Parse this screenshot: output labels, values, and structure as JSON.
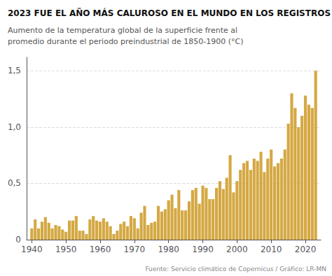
{
  "chart_data": {
    "type": "bar",
    "title": "2023 FUE EL AÑO MÁS CALUROSO EN EL MUNDO EN LOS REGISTROS",
    "subtitle": "Aumento de la temperatura global de la superficie frente al\npromedio durante el periodo preindustrial de 1850-1900 (°C)",
    "annotations": [
      "Fuente: Servicio climático de Copernicus / Gráfico: LR-MN"
    ],
    "x": [
      1940,
      1941,
      1942,
      1943,
      1944,
      1945,
      1946,
      1947,
      1948,
      1949,
      1950,
      1951,
      1952,
      1953,
      1954,
      1955,
      1956,
      1957,
      1958,
      1959,
      1960,
      1961,
      1962,
      1963,
      1964,
      1965,
      1966,
      1967,
      1968,
      1969,
      1970,
      1971,
      1972,
      1973,
      1974,
      1975,
      1976,
      1977,
      1978,
      1979,
      1980,
      1981,
      1982,
      1983,
      1984,
      1985,
      1986,
      1987,
      1988,
      1989,
      1990,
      1991,
      1992,
      1993,
      1994,
      1995,
      1996,
      1997,
      1998,
      1999,
      2000,
      2001,
      2002,
      2003,
      2004,
      2005,
      2006,
      2007,
      2008,
      2009,
      2010,
      2011,
      2012,
      2013,
      2014,
      2015,
      2016,
      2017,
      2018,
      2019,
      2020,
      2021,
      2022,
      2023
    ],
    "values": [
      0.1,
      0.18,
      0.1,
      0.16,
      0.2,
      0.15,
      0.1,
      0.13,
      0.12,
      0.09,
      0.07,
      0.17,
      0.17,
      0.21,
      0.08,
      0.08,
      0.05,
      0.18,
      0.21,
      0.17,
      0.16,
      0.19,
      0.16,
      0.12,
      0.05,
      0.08,
      0.14,
      0.16,
      0.12,
      0.21,
      0.19,
      0.1,
      0.24,
      0.3,
      0.13,
      0.15,
      0.16,
      0.3,
      0.25,
      0.27,
      0.35,
      0.4,
      0.28,
      0.44,
      0.26,
      0.26,
      0.34,
      0.44,
      0.46,
      0.32,
      0.48,
      0.46,
      0.36,
      0.36,
      0.46,
      0.52,
      0.45,
      0.55,
      0.75,
      0.42,
      0.52,
      0.62,
      0.68,
      0.7,
      0.62,
      0.72,
      0.7,
      0.78,
      0.6,
      0.72,
      0.8,
      0.65,
      0.68,
      0.72,
      0.8,
      1.03,
      1.3,
      1.17,
      1.0,
      1.1,
      1.28,
      1.2,
      1.17,
      1.5
    ],
    "color": "#D4A843",
    "xlim": [
      1938.5,
      2024.5
    ],
    "xticks": [
      1940,
      1950,
      1960,
      1970,
      1980,
      1990,
      2000,
      2010,
      2020
    ],
    "ylim": [
      0,
      1.62
    ],
    "yticks": [
      0,
      {
        "value": 0.5,
        "label": "0,5"
      },
      {
        "value": 1.0,
        "label": "1,0"
      },
      {
        "value": 1.5,
        "label": "1,5"
      }
    ],
    "grid": true
  }
}
